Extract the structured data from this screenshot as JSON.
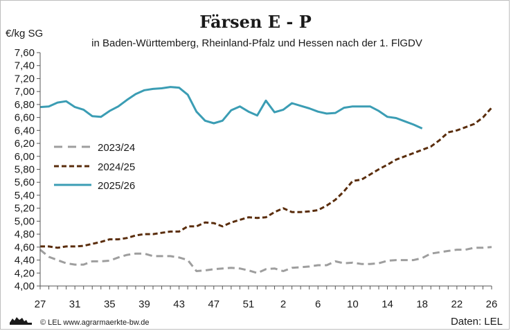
{
  "chart_data": {
    "type": "line",
    "title": "Färsen E - P",
    "subtitle": "in Baden-Württemberg, Rheinland-Pfalz und Hessen nach der 1. FlGDV",
    "ylabel": "€/kg SG",
    "ylim": [
      4.0,
      7.6
    ],
    "ytick_step": 0.2,
    "yticks": [
      "4,00",
      "4,20",
      "4,40",
      "4,60",
      "4,80",
      "5,00",
      "5,20",
      "5,40",
      "5,60",
      "5,80",
      "6,00",
      "6,20",
      "6,40",
      "6,60",
      "6,80",
      "7,00",
      "7,20",
      "7,40",
      "7,60"
    ],
    "xticks": [
      "27",
      "31",
      "35",
      "39",
      "43",
      "47",
      "51",
      "2",
      "6",
      "10",
      "14",
      "18",
      "22",
      "26"
    ],
    "x_weeks": [
      27,
      28,
      29,
      30,
      31,
      32,
      33,
      34,
      35,
      36,
      37,
      38,
      39,
      40,
      41,
      42,
      43,
      44,
      45,
      46,
      47,
      48,
      49,
      50,
      51,
      52,
      53,
      1,
      2,
      3,
      4,
      5,
      6,
      7,
      8,
      9,
      10,
      11,
      12,
      13,
      14,
      15,
      16,
      17,
      18,
      19,
      20,
      21,
      22,
      23,
      24,
      25,
      26
    ],
    "grid": false,
    "legend": "left",
    "series": [
      {
        "name": "2023/24",
        "color": "#9e9e9e",
        "style": "dashed",
        "values": [
          4.56,
          4.45,
          4.4,
          4.35,
          4.33,
          4.33,
          4.38,
          4.38,
          4.39,
          4.44,
          4.48,
          4.5,
          4.5,
          4.46,
          4.46,
          4.46,
          4.44,
          4.4,
          4.23,
          4.24,
          4.26,
          4.27,
          4.28,
          4.27,
          4.24,
          4.2,
          4.26,
          4.27,
          4.23,
          4.28,
          4.29,
          4.3,
          4.32,
          4.32,
          4.38,
          4.35,
          4.36,
          4.34,
          4.34,
          4.35,
          4.39,
          4.4,
          4.4,
          4.4,
          4.43,
          4.5,
          4.52,
          4.54,
          4.56,
          4.56,
          4.59,
          4.59,
          4.6
        ]
      },
      {
        "name": "2024/25",
        "color": "#5a2d0c",
        "style": "dashed",
        "values": [
          4.61,
          4.61,
          4.59,
          4.61,
          4.61,
          4.62,
          4.65,
          4.68,
          4.72,
          4.72,
          4.74,
          4.78,
          4.8,
          4.8,
          4.82,
          4.84,
          4.84,
          4.92,
          4.92,
          4.98,
          4.97,
          4.92,
          4.98,
          5.02,
          5.06,
          5.05,
          5.06,
          5.14,
          5.2,
          5.14,
          5.14,
          5.15,
          5.17,
          5.24,
          5.33,
          5.46,
          5.62,
          5.64,
          5.72,
          5.8,
          5.87,
          5.95,
          6.0,
          6.05,
          6.1,
          6.15,
          6.25,
          6.37,
          6.4,
          6.45,
          6.5,
          6.6,
          6.75
        ]
      },
      {
        "name": "2025/26",
        "color": "#3b9db4",
        "style": "solid",
        "values": [
          6.76,
          6.77,
          6.83,
          6.85,
          6.76,
          6.72,
          6.62,
          6.61,
          6.7,
          6.77,
          6.87,
          6.96,
          7.02,
          7.04,
          7.05,
          7.07,
          7.06,
          6.95,
          6.69,
          6.55,
          6.51,
          6.55,
          6.71,
          6.77,
          6.69,
          6.63,
          6.86,
          6.68,
          6.72,
          6.82,
          6.78,
          6.74,
          6.69,
          6.66,
          6.67,
          6.75,
          6.77,
          6.77,
          6.77,
          6.7,
          6.61,
          6.59,
          6.54,
          6.49,
          6.43
        ]
      }
    ]
  },
  "footer": {
    "credit": "© LEL www.agrarmaerkte-bw.de",
    "source": "Daten: LEL",
    "logo_icon": "lion-logo-icon"
  }
}
